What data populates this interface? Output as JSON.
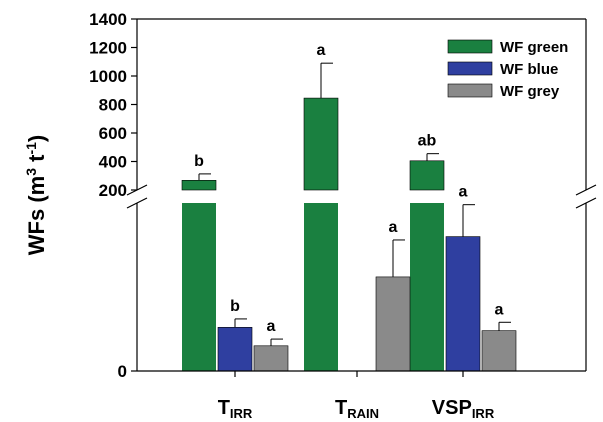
{
  "chart_data": {
    "type": "bar",
    "ylabel": {
      "main": "WFs (m",
      "sup1": "3",
      "mid": " t",
      "sup2": "-1",
      "end": ")"
    },
    "categories": [
      {
        "main": "T",
        "sub": "IRR"
      },
      {
        "main": "T",
        "sub": "RAIN"
      },
      {
        "main": "VSP",
        "sub": "IRR"
      }
    ],
    "y_tick_labels_upper": [
      "200",
      "400",
      "600",
      "800",
      "1000",
      "1200",
      "1400"
    ],
    "y_tick_labels_lower": [
      "0"
    ],
    "axis_break": {
      "lower_range": [
        0,
        100
      ],
      "upper_range": [
        200,
        1400
      ]
    },
    "legend_position": "top-right",
    "series": [
      {
        "name": "WF green",
        "color": "#1a8040",
        "values": [
          268,
          845,
          405
        ],
        "errors": [
          45,
          245,
          50
        ],
        "letters": [
          "b",
          "a",
          "ab"
        ]
      },
      {
        "name": "WF blue",
        "color": "#2f3fa0",
        "values": [
          26,
          null,
          80
        ],
        "errors": [
          5,
          null,
          19
        ],
        "letters": [
          "b",
          "",
          "a"
        ]
      },
      {
        "name": "WF grey",
        "color": "#8a8a8a",
        "values": [
          15,
          56,
          24
        ],
        "errors": [
          4,
          22,
          5
        ],
        "letters": [
          "a",
          "a",
          "a"
        ]
      }
    ]
  }
}
